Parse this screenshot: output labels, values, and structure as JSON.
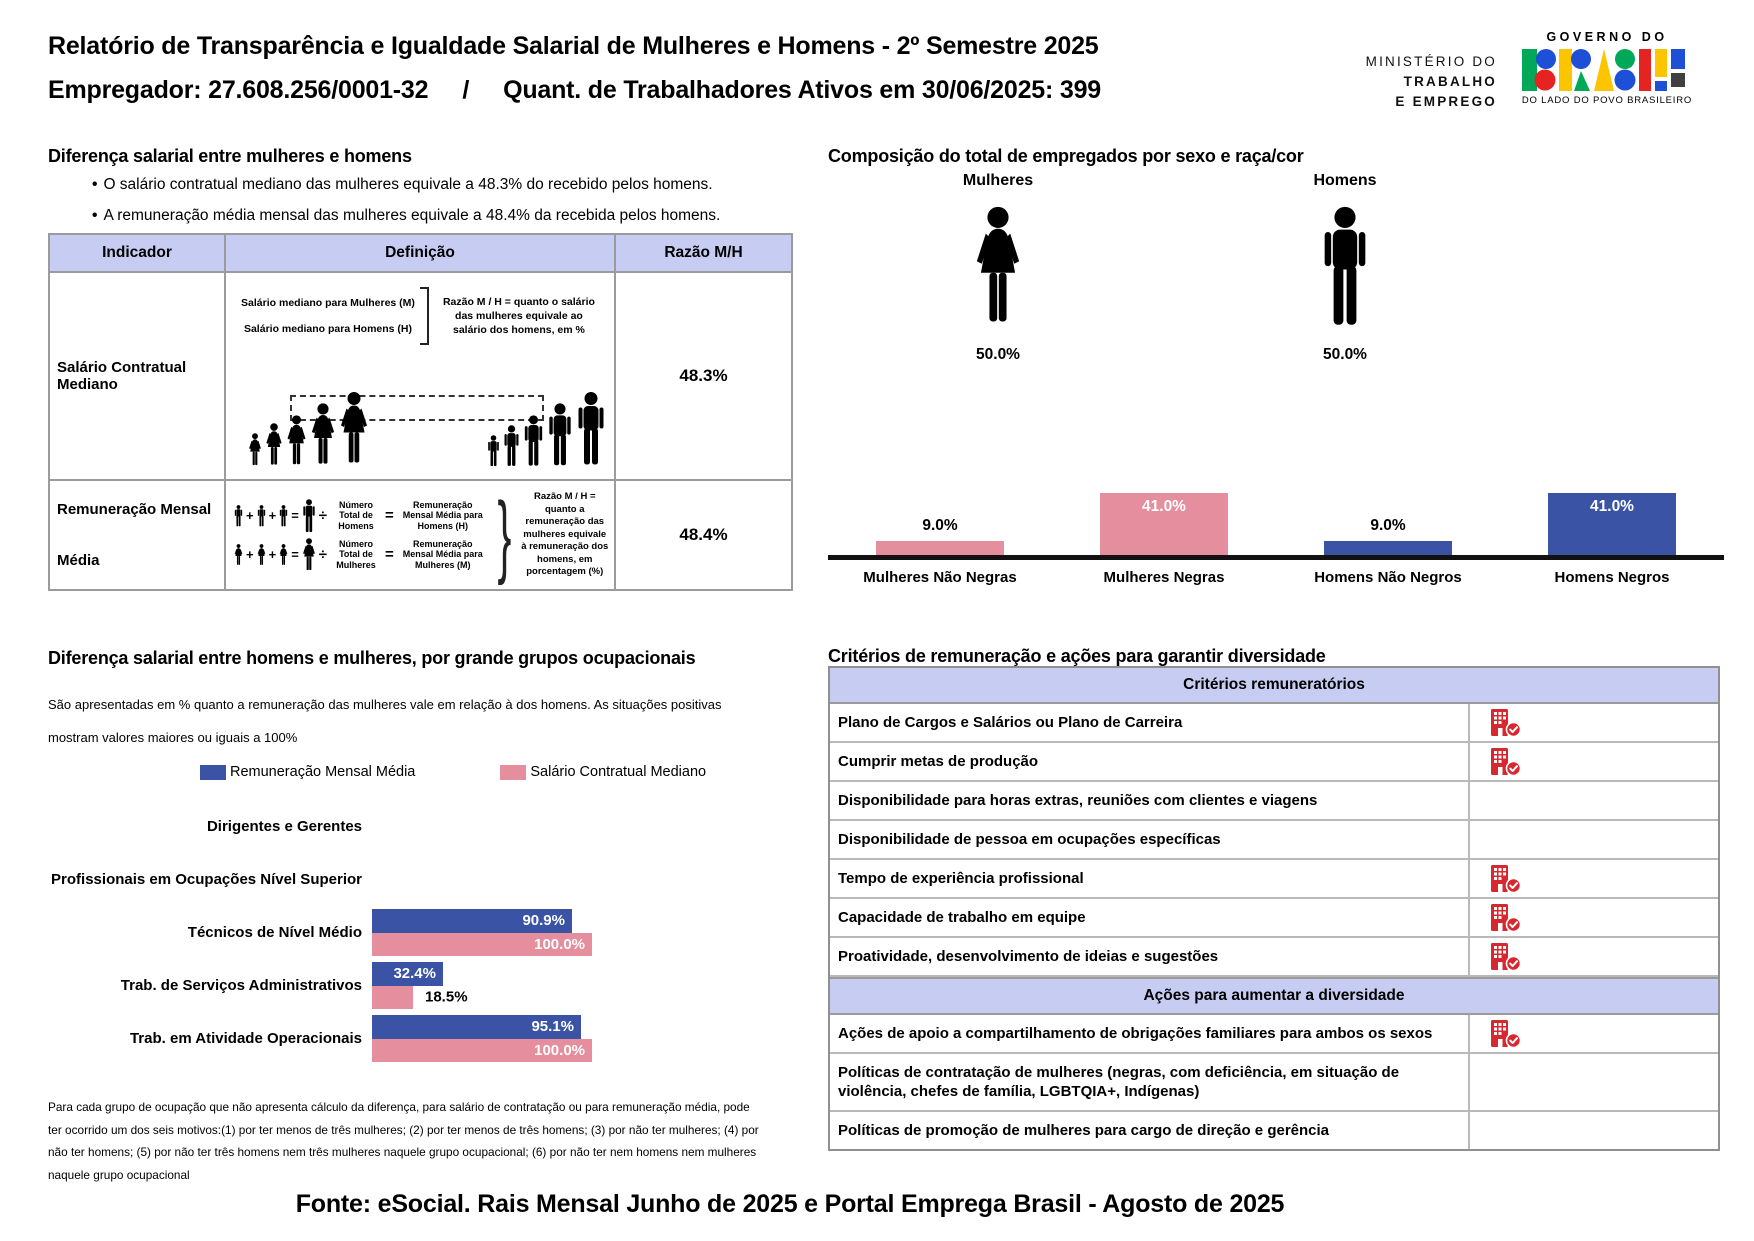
{
  "header": {
    "title": "Relatório de Transparência e Igualdade Salarial de Mulheres e Homens - 2º Semestre 2025",
    "employer": "Empregador: 27.608.256/0001-32",
    "separator": "/",
    "workers": "Quant. de Trabalhadores Ativos em 30/06/2025: 399",
    "ministry": [
      "MINISTÉRIO DO",
      "TRABALHO",
      "E EMPREGO"
    ],
    "gov_logo": {
      "top": "GOVERNO DO",
      "name": "BRASIL",
      "bottom": "DO LADO DO POVO BRASILEIRO"
    }
  },
  "salary_gap": {
    "heading": "Diferença salarial entre mulheres e homens",
    "bullets": [
      "O salário contratual mediano das mulheres equivale a 48.3% do recebido pelos homens.",
      "A remuneração média mensal das mulheres equivale a 48.4% da recebida pelos homens."
    ],
    "table": {
      "headers": [
        "Indicador",
        "Definição",
        "Razão M/H"
      ],
      "row1": {
        "indicator": "Salário Contratual Mediano",
        "def_line1": "Salário mediano para Mulheres (M)",
        "def_line2": "Salário mediano para Homens (H)",
        "def_note": "Razão M / H = quanto o salário das mulheres equivale ao salário dos homens, em %",
        "ratio": "48.3%"
      },
      "row2": {
        "indicator_l1": "Remuneração Mensal",
        "indicator_l2": "Média",
        "men_num": "Número Total de Homens",
        "men_rem": "Remuneração Mensal Média para Homens (H)",
        "women_num": "Número Total de Mulheres",
        "women_rem": "Remuneração Mensal Média para Mulheres (M)",
        "op_plus": "+",
        "op_equals": "=",
        "op_divide": "÷",
        "brace": "}",
        "def_note": "Razão M / H = quanto a remuneração das mulheres equivale à remuneração dos homens, em porcentagem (%)",
        "ratio": "48.4%"
      }
    }
  },
  "composition": {
    "heading": "Composição do total de empregados por sexo e raça/cor",
    "genders": [
      {
        "label": "Mulheres",
        "value": "50.0%"
      },
      {
        "label": "Homens",
        "value": "50.0%"
      }
    ]
  },
  "occupational": {
    "heading": "Diferença salarial entre homens e mulheres, por grande grupos ocupacionais",
    "description_l1": "São apresentadas em % quanto a remuneração das mulheres vale em relação à dos homens. As situações positivas",
    "description_l2": "mostram valores maiores ou iguais a 100%",
    "legend": [
      {
        "label": "Remuneração Mensal Média",
        "color": "#3a53a4"
      },
      {
        "label": "Salário Contratual Mediano",
        "color": "#e48e9e"
      }
    ],
    "footnote": "Para cada grupo de ocupação que não apresenta cálculo da diferença, para salário de contratação ou para remuneração média, pode ter ocorrido um dos seis motivos:(1) por ter menos de três mulheres; (2) por ter menos de três homens; (3) por não ter mulheres; (4) por não ter homens; (5) por não ter três homens nem três mulheres naquele grupo ocupacional; (6) por não ter nem homens nem mulheres naquele grupo ocupacional"
  },
  "criteria": {
    "heading": "Critérios de remuneração e ações para garantir diversidade",
    "check_icon": "building-check-icon",
    "sections": [
      {
        "header": "Critérios remuneratórios",
        "rows": [
          {
            "label": "Plano de Cargos e Salários ou Plano de Carreira",
            "checked": true
          },
          {
            "label": "Cumprir metas de produção",
            "checked": true
          },
          {
            "label": "Disponibilidade para horas extras, reuniões com clientes e viagens",
            "checked": false
          },
          {
            "label": "Disponibilidade de pessoa em ocupações específicas",
            "checked": false
          },
          {
            "label": "Tempo de experiência profissional",
            "checked": true
          },
          {
            "label": "Capacidade de trabalho em equipe",
            "checked": true
          },
          {
            "label": "Proatividade, desenvolvimento de ideias e sugestões",
            "checked": true
          }
        ]
      },
      {
        "header": "Ações para aumentar a diversidade",
        "rows": [
          {
            "label": "Ações de apoio a compartilhamento de obrigações familiares para ambos os sexos",
            "checked": true
          },
          {
            "label": "Políticas de contratação de mulheres (negras, com deficiência, em situação de violência, chefes de família, LGBTQIA+, Indígenas)",
            "checked": false
          },
          {
            "label": "Políticas de promoção de mulheres para cargo de direção e gerência",
            "checked": false
          }
        ]
      }
    ]
  },
  "footer": "Fonte: eSocial. Rais Mensal Junho de 2025 e Portal Emprega Brasil - Agosto de 2025",
  "colors": {
    "pink": "#e48e9e",
    "blue": "#3a53a4",
    "red": "#d7282f",
    "lavender": "#c7cdf2"
  },
  "chart_data": [
    {
      "id": "composition-by-sex-race",
      "type": "bar",
      "title": "Composição do total de empregados por sexo e raça/cor",
      "categories": [
        "Mulheres Não Negras",
        "Mulheres Negras",
        "Homens Não Negros",
        "Homens Negros"
      ],
      "values": [
        9.0,
        41.0,
        9.0,
        41.0
      ],
      "labels": [
        "9.0%",
        "41.0%",
        "9.0%",
        "41.0%"
      ],
      "colors": [
        "#e48e9e",
        "#e48e9e",
        "#3a53a4",
        "#3a53a4"
      ],
      "gender_totals": {
        "Mulheres": 50.0,
        "Homens": 50.0
      },
      "ylim": [
        0,
        100
      ],
      "grid": false,
      "legend_position": "none"
    },
    {
      "id": "salary-gap-by-occupation",
      "type": "bar",
      "orientation": "horizontal",
      "title": "Diferença salarial entre homens e mulheres, por grande grupos ocupacionais",
      "categories": [
        "Dirigentes e Gerentes",
        "Profissionais em Ocupações Nível Superior",
        "Técnicos de Nível Médio",
        "Trab. de Serviços Administrativos",
        "Trab. em Atividade Operacionais"
      ],
      "series": [
        {
          "name": "Remuneração Mensal Média",
          "color": "#3a53a4",
          "values": [
            null,
            null,
            90.9,
            32.4,
            95.1
          ],
          "labels": [
            "",
            "",
            "90.9%",
            "32.4%",
            "95.1%"
          ]
        },
        {
          "name": "Salário Contratual Mediano",
          "color": "#e48e9e",
          "values": [
            null,
            null,
            100.0,
            18.5,
            100.0
          ],
          "labels": [
            "",
            "",
            "100.0%",
            "18.5%",
            "100.0%"
          ]
        }
      ],
      "xlim": [
        0,
        100
      ],
      "grid": false,
      "legend_position": "top"
    }
  ]
}
